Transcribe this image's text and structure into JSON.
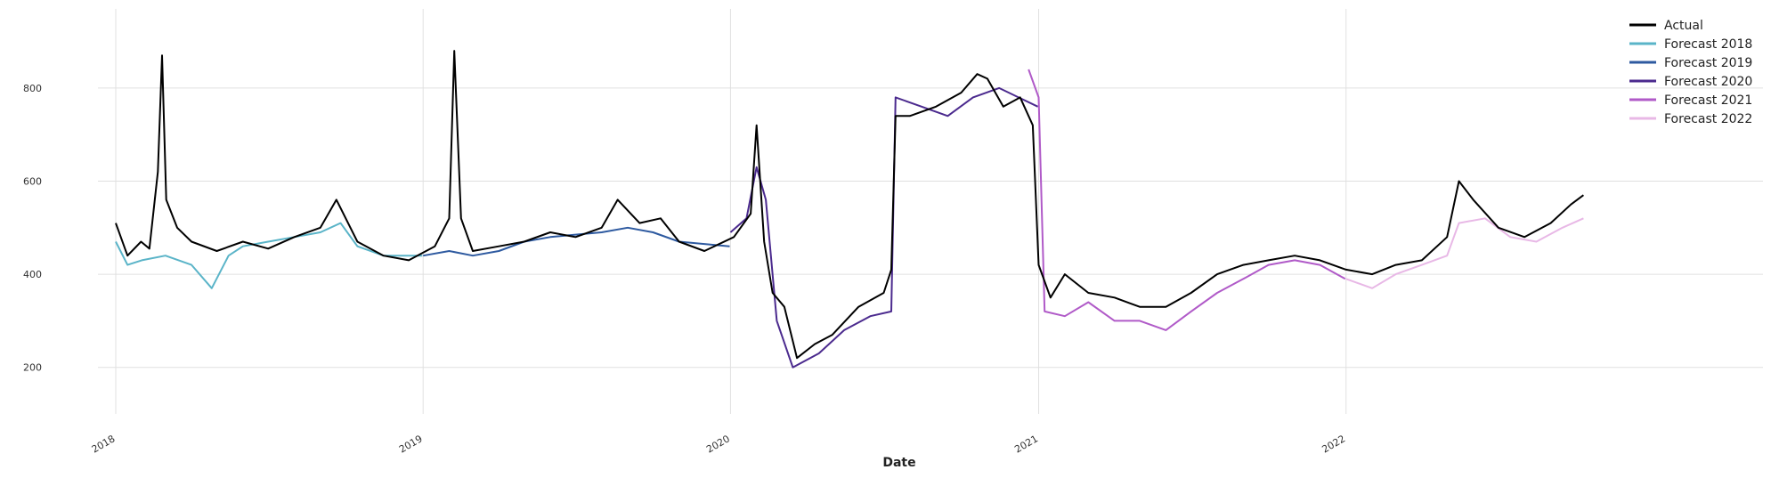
{
  "chart_data": {
    "type": "line",
    "title": "",
    "xlabel": "Date",
    "ylabel": "",
    "x_axis": {
      "type": "date",
      "range": [
        "2018-01-01",
        "2022-12-31"
      ]
    },
    "ylim": [
      100,
      970
    ],
    "grid": true,
    "legend_position": "top-right",
    "x_ticks": [
      {
        "date": "2018-01-01",
        "label": "2018"
      },
      {
        "date": "2019-01-01",
        "label": "2019"
      },
      {
        "date": "2020-01-01",
        "label": "2020"
      },
      {
        "date": "2021-01-01",
        "label": "2021"
      },
      {
        "date": "2022-01-01",
        "label": "2022"
      }
    ],
    "y_ticks": [
      200,
      400,
      600,
      800
    ],
    "series": [
      {
        "name": "Actual",
        "color": "#000000",
        "points": [
          [
            "2018-01-01",
            510
          ],
          [
            "2018-01-15",
            440
          ],
          [
            "2018-01-31",
            470
          ],
          [
            "2018-02-10",
            455
          ],
          [
            "2018-02-20",
            620
          ],
          [
            "2018-02-25",
            870
          ],
          [
            "2018-03-02",
            560
          ],
          [
            "2018-03-15",
            500
          ],
          [
            "2018-04-01",
            470
          ],
          [
            "2018-05-01",
            450
          ],
          [
            "2018-06-01",
            470
          ],
          [
            "2018-07-01",
            455
          ],
          [
            "2018-08-01",
            480
          ],
          [
            "2018-09-01",
            500
          ],
          [
            "2018-09-20",
            560
          ],
          [
            "2018-10-15",
            470
          ],
          [
            "2018-11-15",
            440
          ],
          [
            "2018-12-15",
            430
          ],
          [
            "2019-01-15",
            460
          ],
          [
            "2019-02-01",
            520
          ],
          [
            "2019-02-07",
            880
          ],
          [
            "2019-02-15",
            520
          ],
          [
            "2019-03-01",
            450
          ],
          [
            "2019-04-01",
            460
          ],
          [
            "2019-05-01",
            470
          ],
          [
            "2019-06-01",
            490
          ],
          [
            "2019-07-01",
            480
          ],
          [
            "2019-08-01",
            500
          ],
          [
            "2019-08-20",
            560
          ],
          [
            "2019-09-15",
            510
          ],
          [
            "2019-10-10",
            520
          ],
          [
            "2019-11-01",
            470
          ],
          [
            "2019-12-01",
            450
          ],
          [
            "2020-01-05",
            480
          ],
          [
            "2020-01-25",
            530
          ],
          [
            "2020-02-01",
            720
          ],
          [
            "2020-02-10",
            470
          ],
          [
            "2020-02-20",
            360
          ],
          [
            "2020-03-05",
            330
          ],
          [
            "2020-03-20",
            220
          ],
          [
            "2020-04-10",
            250
          ],
          [
            "2020-05-01",
            270
          ],
          [
            "2020-06-01",
            330
          ],
          [
            "2020-07-01",
            360
          ],
          [
            "2020-07-10",
            410
          ],
          [
            "2020-07-15",
            740
          ],
          [
            "2020-08-01",
            740
          ],
          [
            "2020-09-01",
            760
          ],
          [
            "2020-10-01",
            790
          ],
          [
            "2020-10-20",
            830
          ],
          [
            "2020-11-01",
            820
          ],
          [
            "2020-11-20",
            760
          ],
          [
            "2020-12-10",
            780
          ],
          [
            "2020-12-25",
            720
          ],
          [
            "2021-01-01",
            420
          ],
          [
            "2021-01-15",
            350
          ],
          [
            "2021-02-01",
            400
          ],
          [
            "2021-03-01",
            360
          ],
          [
            "2021-04-01",
            350
          ],
          [
            "2021-05-01",
            330
          ],
          [
            "2021-06-01",
            330
          ],
          [
            "2021-07-01",
            360
          ],
          [
            "2021-08-01",
            400
          ],
          [
            "2021-09-01",
            420
          ],
          [
            "2021-10-01",
            430
          ],
          [
            "2021-11-01",
            440
          ],
          [
            "2021-12-01",
            430
          ],
          [
            "2022-01-01",
            410
          ],
          [
            "2022-02-01",
            400
          ],
          [
            "2022-03-01",
            420
          ],
          [
            "2022-04-01",
            430
          ],
          [
            "2022-05-01",
            480
          ],
          [
            "2022-05-15",
            600
          ],
          [
            "2022-06-01",
            560
          ],
          [
            "2022-07-01",
            500
          ],
          [
            "2022-08-01",
            480
          ],
          [
            "2022-09-01",
            510
          ],
          [
            "2022-09-25",
            550
          ],
          [
            "2022-10-10",
            570
          ]
        ]
      },
      {
        "name": "Forecast 2018",
        "color": "#5ab4c8",
        "points": [
          [
            "2018-01-01",
            470
          ],
          [
            "2018-01-15",
            420
          ],
          [
            "2018-02-01",
            430
          ],
          [
            "2018-03-01",
            440
          ],
          [
            "2018-04-01",
            420
          ],
          [
            "2018-04-25",
            370
          ],
          [
            "2018-05-15",
            440
          ],
          [
            "2018-06-01",
            460
          ],
          [
            "2018-07-01",
            470
          ],
          [
            "2018-08-01",
            480
          ],
          [
            "2018-09-01",
            490
          ],
          [
            "2018-09-25",
            510
          ],
          [
            "2018-10-15",
            460
          ],
          [
            "2018-11-15",
            440
          ],
          [
            "2018-12-31",
            440
          ]
        ]
      },
      {
        "name": "Forecast 2019",
        "color": "#2e5aa0",
        "points": [
          [
            "2019-01-01",
            440
          ],
          [
            "2019-02-01",
            450
          ],
          [
            "2019-03-01",
            440
          ],
          [
            "2019-04-01",
            450
          ],
          [
            "2019-05-01",
            470
          ],
          [
            "2019-06-01",
            480
          ],
          [
            "2019-07-01",
            485
          ],
          [
            "2019-08-01",
            490
          ],
          [
            "2019-09-01",
            500
          ],
          [
            "2019-10-01",
            490
          ],
          [
            "2019-11-01",
            470
          ],
          [
            "2019-12-31",
            460
          ]
        ]
      },
      {
        "name": "Forecast 2020",
        "color": "#4b2a8e",
        "points": [
          [
            "2020-01-01",
            490
          ],
          [
            "2020-01-20",
            520
          ],
          [
            "2020-02-01",
            630
          ],
          [
            "2020-02-12",
            560
          ],
          [
            "2020-02-25",
            300
          ],
          [
            "2020-03-15",
            200
          ],
          [
            "2020-04-15",
            230
          ],
          [
            "2020-05-15",
            280
          ],
          [
            "2020-06-15",
            310
          ],
          [
            "2020-07-10",
            320
          ],
          [
            "2020-07-15",
            780
          ],
          [
            "2020-08-15",
            760
          ],
          [
            "2020-09-15",
            740
          ],
          [
            "2020-10-15",
            780
          ],
          [
            "2020-11-15",
            800
          ],
          [
            "2020-12-31",
            760
          ]
        ]
      },
      {
        "name": "Forecast 2021",
        "color": "#b05ac8",
        "points": [
          [
            "2020-12-20",
            840
          ],
          [
            "2021-01-01",
            780
          ],
          [
            "2021-01-08",
            320
          ],
          [
            "2021-02-01",
            310
          ],
          [
            "2021-03-01",
            340
          ],
          [
            "2021-04-01",
            300
          ],
          [
            "2021-05-01",
            300
          ],
          [
            "2021-06-01",
            280
          ],
          [
            "2021-07-01",
            320
          ],
          [
            "2021-08-01",
            360
          ],
          [
            "2021-09-01",
            390
          ],
          [
            "2021-10-01",
            420
          ],
          [
            "2021-11-01",
            430
          ],
          [
            "2021-12-01",
            420
          ],
          [
            "2021-12-31",
            390
          ]
        ]
      },
      {
        "name": "Forecast 2022",
        "color": "#e8b8e6",
        "points": [
          [
            "2022-01-01",
            390
          ],
          [
            "2022-02-01",
            370
          ],
          [
            "2022-03-01",
            400
          ],
          [
            "2022-04-01",
            420
          ],
          [
            "2022-05-01",
            440
          ],
          [
            "2022-05-15",
            510
          ],
          [
            "2022-06-15",
            520
          ],
          [
            "2022-07-15",
            480
          ],
          [
            "2022-08-15",
            470
          ],
          [
            "2022-09-15",
            500
          ],
          [
            "2022-10-10",
            520
          ]
        ]
      }
    ]
  }
}
